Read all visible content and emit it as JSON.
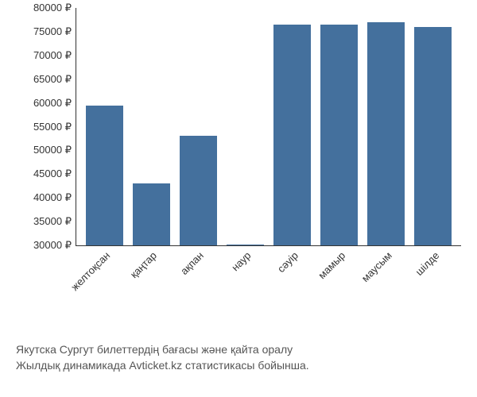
{
  "chart": {
    "type": "bar",
    "categories": [
      "желтоқсан",
      "қаңтар",
      "ақпан",
      "наур",
      "сәуір",
      "мамыр",
      "маусым",
      "шілде"
    ],
    "values": [
      59500,
      43000,
      53000,
      30200,
      76500,
      76500,
      77000,
      76000
    ],
    "bar_color": "#44709d",
    "ylim": [
      30000,
      80000
    ],
    "ytick_step": 5000,
    "y_tick_suffix": " ₽",
    "axis_color": "#333333",
    "label_fontsize": 13,
    "label_color": "#333333",
    "background_color": "#ffffff",
    "bar_width_ratio": 0.78,
    "x_label_rotation_deg": -45
  },
  "caption": {
    "line1": "Якутска Сургут билеттердің бағасы және қайта оралу",
    "line2": "Жылдық динамикада Avticket.kz статистикасы бойынша.",
    "color": "#555555",
    "fontsize": 14
  }
}
